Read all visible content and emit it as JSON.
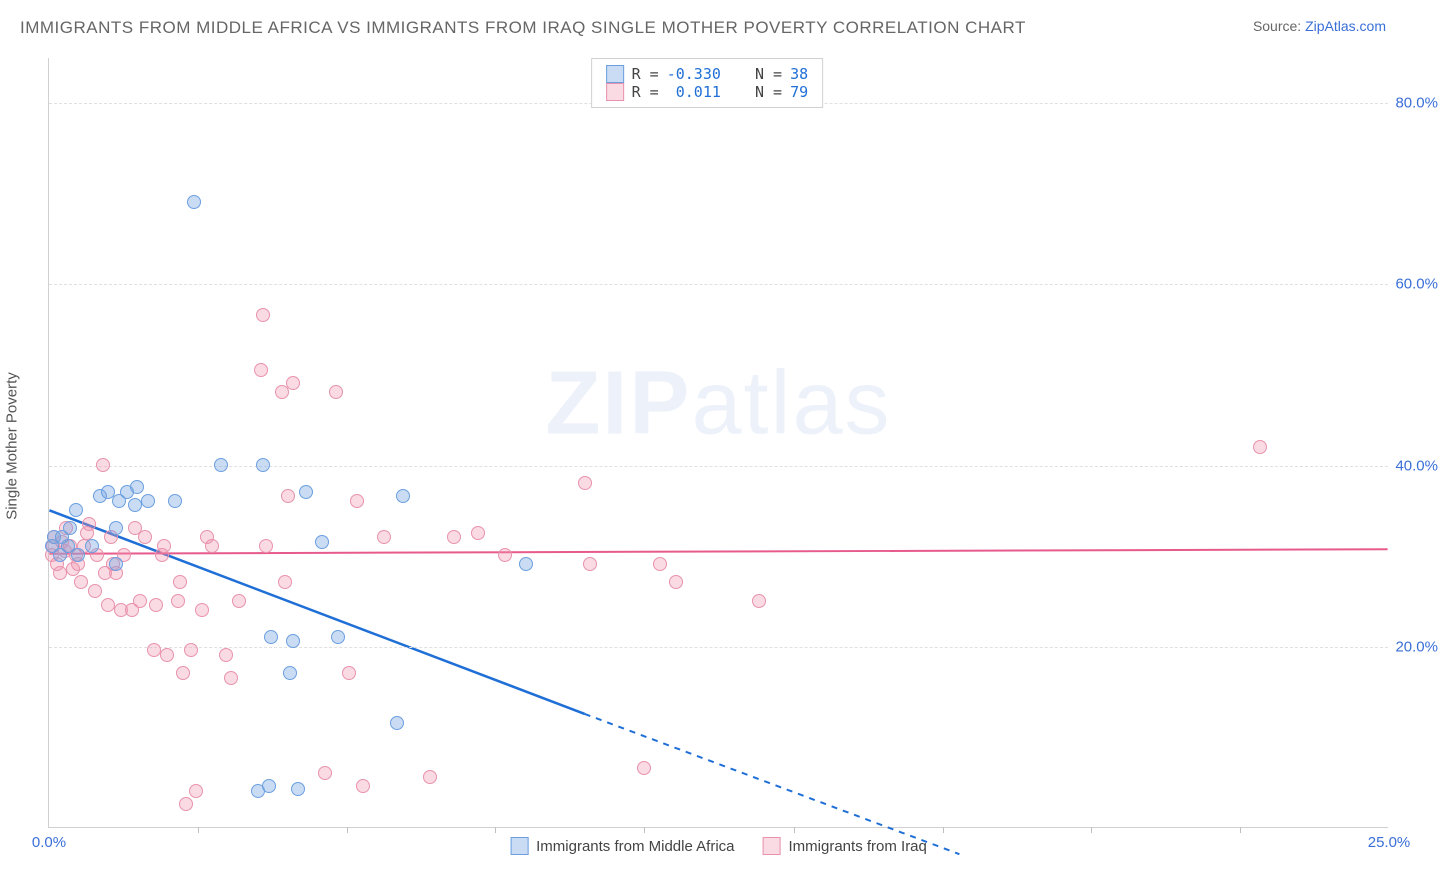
{
  "title_text": "IMMIGRANTS FROM MIDDLE AFRICA VS IMMIGRANTS FROM IRAQ SINGLE MOTHER POVERTY CORRELATION CHART",
  "title_color": "#666666",
  "source_prefix": "Source: ",
  "source_prefix_color": "#666666",
  "source_link": "ZipAtlas.com",
  "source_link_color": "#3a6fd8",
  "watermark_zip": "ZIP",
  "watermark_atlas": "atlas",
  "watermark_color": "#8aa8e0",
  "ylabel": "Single Mother Poverty",
  "ylabel_color": "#555555",
  "chart": {
    "type": "scatter",
    "xlim": [
      0,
      25
    ],
    "ylim": [
      0,
      85
    ],
    "xticks": [
      0,
      25
    ],
    "xtick_labels": [
      "0.0%",
      "25.0%"
    ],
    "xtick_minor": [
      2.78,
      5.56,
      8.33,
      11.11,
      13.89,
      16.67,
      19.44,
      22.22
    ],
    "yticks": [
      20,
      40,
      60,
      80
    ],
    "ytick_labels": [
      "20.0%",
      "40.0%",
      "60.0%",
      "80.0%"
    ],
    "ytick_color": "#3a6fd8",
    "xtick_color": "#3a6fd8",
    "grid_color": "#e0e0e0",
    "grid_dash": "4,4",
    "background_color": "#ffffff",
    "marker_radius": 7,
    "marker_stroke_width": 1.5,
    "series": [
      {
        "name": "Immigrants from Middle Africa",
        "fill_color": "rgba(122,168,226,0.4)",
        "stroke_color": "#6b9fe0",
        "line_color": "#1f6fd6",
        "line_width": 2.5,
        "R": "-0.330",
        "N": "38",
        "regression": {
          "x1": 0,
          "y1": 35,
          "x2": 10,
          "y2": 12.5,
          "dash_from_x": 10,
          "dash_to_x": 17,
          "dash_to_y": -3
        },
        "points": [
          [
            0.05,
            31
          ],
          [
            0.1,
            32
          ],
          [
            0.2,
            30
          ],
          [
            0.25,
            32
          ],
          [
            0.35,
            31
          ],
          [
            0.4,
            33
          ],
          [
            0.5,
            35
          ],
          [
            0.55,
            30
          ],
          [
            0.8,
            31
          ],
          [
            0.95,
            36.5
          ],
          [
            1.1,
            37
          ],
          [
            1.25,
            29
          ],
          [
            1.25,
            33
          ],
          [
            1.3,
            36
          ],
          [
            1.45,
            37
          ],
          [
            1.6,
            35.5
          ],
          [
            1.65,
            37.5
          ],
          [
            1.85,
            36
          ],
          [
            2.35,
            36
          ],
          [
            2.7,
            69
          ],
          [
            3.2,
            40
          ],
          [
            3.9,
            4
          ],
          [
            4.0,
            40
          ],
          [
            4.1,
            4.5
          ],
          [
            4.15,
            21
          ],
          [
            4.5,
            17
          ],
          [
            4.55,
            20.5
          ],
          [
            4.65,
            4.2
          ],
          [
            4.8,
            37
          ],
          [
            5.1,
            31.5
          ],
          [
            5.4,
            21
          ],
          [
            6.5,
            11.5
          ],
          [
            6.6,
            36.5
          ],
          [
            8.9,
            29
          ]
        ]
      },
      {
        "name": "Immigrants from Iraq",
        "fill_color": "rgba(240,150,175,0.35)",
        "stroke_color": "#e892ac",
        "line_color": "#e75a8c",
        "line_width": 2,
        "R": "0.011",
        "N": "79",
        "regression": {
          "x1": 0,
          "y1": 30.2,
          "x2": 25,
          "y2": 30.7
        },
        "points": [
          [
            0.05,
            30
          ],
          [
            0.08,
            31
          ],
          [
            0.1,
            32
          ],
          [
            0.15,
            29
          ],
          [
            0.2,
            28
          ],
          [
            0.25,
            31.5
          ],
          [
            0.3,
            30.5
          ],
          [
            0.32,
            33
          ],
          [
            0.4,
            31
          ],
          [
            0.45,
            28.5
          ],
          [
            0.5,
            30
          ],
          [
            0.55,
            29
          ],
          [
            0.6,
            27
          ],
          [
            0.65,
            31
          ],
          [
            0.7,
            32.5
          ],
          [
            0.75,
            33.5
          ],
          [
            0.85,
            26
          ],
          [
            0.9,
            30
          ],
          [
            1.0,
            40
          ],
          [
            1.05,
            28
          ],
          [
            1.1,
            24.5
          ],
          [
            1.15,
            32
          ],
          [
            1.2,
            29
          ],
          [
            1.25,
            28
          ],
          [
            1.35,
            24
          ],
          [
            1.4,
            30
          ],
          [
            1.55,
            24
          ],
          [
            1.6,
            33
          ],
          [
            1.7,
            25
          ],
          [
            1.8,
            32
          ],
          [
            1.95,
            19.5
          ],
          [
            2.0,
            24.5
          ],
          [
            2.1,
            30
          ],
          [
            2.15,
            31
          ],
          [
            2.2,
            19
          ],
          [
            2.4,
            25
          ],
          [
            2.45,
            27
          ],
          [
            2.5,
            17
          ],
          [
            2.55,
            2.5
          ],
          [
            2.65,
            19.5
          ],
          [
            2.75,
            4
          ],
          [
            2.85,
            24
          ],
          [
            2.95,
            32
          ],
          [
            3.05,
            31
          ],
          [
            3.3,
            19
          ],
          [
            3.4,
            16.5
          ],
          [
            3.55,
            25
          ],
          [
            3.95,
            50.5
          ],
          [
            4.0,
            56.5
          ],
          [
            4.05,
            31
          ],
          [
            4.35,
            48
          ],
          [
            4.4,
            27
          ],
          [
            4.45,
            36.5
          ],
          [
            4.55,
            49
          ],
          [
            5.15,
            6
          ],
          [
            5.35,
            48
          ],
          [
            5.6,
            17
          ],
          [
            5.75,
            36
          ],
          [
            5.85,
            4.5
          ],
          [
            6.25,
            32
          ],
          [
            7.1,
            5.5
          ],
          [
            7.55,
            32
          ],
          [
            8.0,
            32.5
          ],
          [
            8.5,
            30
          ],
          [
            10.0,
            38
          ],
          [
            10.1,
            29
          ],
          [
            11.1,
            6.5
          ],
          [
            11.4,
            29
          ],
          [
            11.7,
            27
          ],
          [
            13.25,
            25
          ],
          [
            22.6,
            42
          ]
        ]
      }
    ]
  },
  "legend_top": {
    "R_label": "R =",
    "N_label": "N =",
    "value_color": "#1f6fd6",
    "text_color": "#444444"
  },
  "legend_bottom": {
    "text_color": "#444444"
  }
}
